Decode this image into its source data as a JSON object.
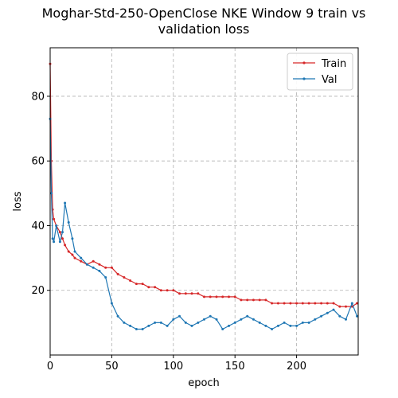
{
  "chart_data": {
    "type": "line",
    "title_lines": [
      "Moghar-Std-250-OpenClose NKE Window 9 train vs",
      "validation loss"
    ],
    "xlabel": "epoch",
    "ylabel": "loss",
    "xlim": [
      0,
      250
    ],
    "ylim": [
      0,
      95
    ],
    "xticks": [
      0,
      50,
      100,
      150,
      200
    ],
    "yticks": [
      20,
      40,
      60,
      80
    ],
    "grid": true,
    "legend_position": "top-right",
    "series": [
      {
        "name": "Train",
        "color": "#d62728",
        "x": [
          0,
          1,
          2,
          3,
          5,
          8,
          10,
          12,
          15,
          18,
          20,
          25,
          30,
          35,
          40,
          45,
          50,
          55,
          60,
          65,
          70,
          75,
          80,
          85,
          90,
          95,
          100,
          105,
          110,
          115,
          120,
          125,
          130,
          135,
          140,
          145,
          150,
          155,
          160,
          165,
          170,
          175,
          180,
          185,
          190,
          195,
          200,
          205,
          210,
          215,
          220,
          225,
          230,
          235,
          240,
          245,
          249
        ],
        "values": [
          90,
          60,
          45,
          42,
          40,
          38,
          36,
          34,
          32,
          31,
          30,
          29,
          28,
          29,
          28,
          27,
          27,
          25,
          24,
          23,
          22,
          22,
          21,
          21,
          20,
          20,
          20,
          19,
          19,
          19,
          19,
          18,
          18,
          18,
          18,
          18,
          18,
          17,
          17,
          17,
          17,
          17,
          16,
          16,
          16,
          16,
          16,
          16,
          16,
          16,
          16,
          16,
          16,
          15,
          15,
          15,
          16
        ]
      },
      {
        "name": "Val",
        "color": "#1f77b4",
        "x": [
          0,
          1,
          2,
          3,
          5,
          8,
          10,
          12,
          15,
          18,
          20,
          25,
          30,
          35,
          40,
          45,
          50,
          55,
          60,
          65,
          70,
          75,
          80,
          85,
          90,
          95,
          100,
          105,
          110,
          115,
          120,
          125,
          130,
          135,
          140,
          145,
          150,
          155,
          160,
          165,
          170,
          175,
          180,
          185,
          190,
          195,
          200,
          205,
          210,
          215,
          220,
          225,
          230,
          235,
          240,
          245,
          249
        ],
        "values": [
          73,
          50,
          36,
          35,
          40,
          35,
          38,
          47,
          41,
          36,
          32,
          30,
          28,
          27,
          26,
          24,
          16,
          12,
          10,
          9,
          8,
          8,
          9,
          10,
          10,
          9,
          11,
          12,
          10,
          9,
          10,
          11,
          12,
          11,
          8,
          9,
          10,
          11,
          12,
          11,
          10,
          9,
          8,
          9,
          10,
          9,
          9,
          10,
          10,
          11,
          12,
          13,
          14,
          12,
          11,
          16,
          12
        ]
      }
    ]
  }
}
